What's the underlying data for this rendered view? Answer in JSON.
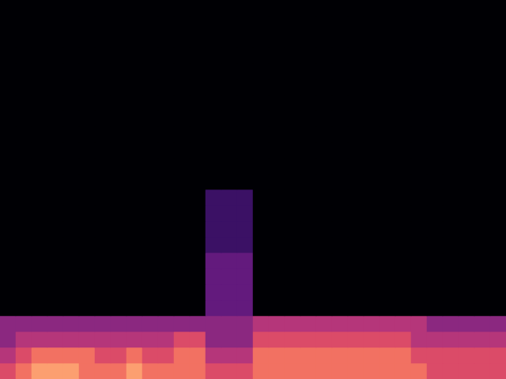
{
  "chart_data": {
    "type": "heatmap",
    "tick_labels": false,
    "grid": false,
    "zlim": [
      0,
      10
    ],
    "cells": [
      [
        6,
        7,
        8,
        8,
        8,
        7,
        7,
        7,
        8,
        7,
        7,
        7,
        7,
        6,
        6,
        6,
        7,
        7,
        7,
        7,
        7,
        7,
        7,
        7,
        7,
        7,
        7,
        6,
        6,
        6,
        6,
        6
      ],
      [
        5,
        6,
        7,
        7,
        7,
        7,
        6,
        6,
        7,
        6,
        6,
        7,
        7,
        5,
        5,
        5,
        7,
        7,
        7,
        7,
        7,
        7,
        7,
        7,
        7,
        7,
        6,
        6,
        6,
        6,
        6,
        6
      ],
      [
        4,
        5,
        5,
        5,
        5,
        5,
        5,
        5,
        5,
        5,
        5,
        6,
        6,
        4,
        4,
        4,
        6,
        6,
        6,
        6,
        6,
        6,
        6,
        6,
        6,
        6,
        5,
        5,
        5,
        5,
        5,
        5
      ],
      [
        4,
        4,
        4,
        4,
        4,
        4,
        4,
        4,
        4,
        4,
        4,
        4,
        4,
        4,
        4,
        4,
        5,
        5,
        5,
        5,
        5,
        5,
        5,
        5,
        5,
        5,
        5,
        4,
        4,
        4,
        4,
        4
      ],
      [
        0,
        0,
        0,
        0,
        0,
        0,
        0,
        0,
        0,
        0,
        0,
        0,
        0,
        3,
        3,
        3,
        0,
        0,
        0,
        0,
        0,
        0,
        0,
        0,
        0,
        0,
        0,
        0,
        0,
        0,
        0,
        0
      ],
      [
        0,
        0,
        0,
        0,
        0,
        0,
        0,
        0,
        0,
        0,
        0,
        0,
        0,
        3,
        3,
        3,
        0,
        0,
        0,
        0,
        0,
        0,
        0,
        0,
        0,
        0,
        0,
        0,
        0,
        0,
        0,
        0
      ],
      [
        0,
        0,
        0,
        0,
        0,
        0,
        0,
        0,
        0,
        0,
        0,
        0,
        0,
        3,
        3,
        3,
        0,
        0,
        0,
        0,
        0,
        0,
        0,
        0,
        0,
        0,
        0,
        0,
        0,
        0,
        0,
        0
      ],
      [
        0,
        0,
        0,
        0,
        0,
        0,
        0,
        0,
        0,
        0,
        0,
        0,
        0,
        3,
        3,
        3,
        0,
        0,
        0,
        0,
        0,
        0,
        0,
        0,
        0,
        0,
        0,
        0,
        0,
        0,
        0,
        0
      ],
      [
        0,
        0,
        0,
        0,
        0,
        0,
        0,
        0,
        0,
        0,
        0,
        0,
        0,
        2,
        2,
        2,
        0,
        0,
        0,
        0,
        0,
        0,
        0,
        0,
        0,
        0,
        0,
        0,
        0,
        0,
        0,
        0
      ],
      [
        0,
        0,
        0,
        0,
        0,
        0,
        0,
        0,
        0,
        0,
        0,
        0,
        0,
        2,
        2,
        2,
        0,
        0,
        0,
        0,
        0,
        0,
        0,
        0,
        0,
        0,
        0,
        0,
        0,
        0,
        0,
        0
      ],
      [
        0,
        0,
        0,
        0,
        0,
        0,
        0,
        0,
        0,
        0,
        0,
        0,
        0,
        2,
        2,
        2,
        0,
        0,
        0,
        0,
        0,
        0,
        0,
        0,
        0,
        0,
        0,
        0,
        0,
        0,
        0,
        0
      ],
      [
        0,
        0,
        0,
        0,
        0,
        0,
        0,
        0,
        0,
        0,
        0,
        0,
        0,
        2,
        2,
        2,
        0,
        0,
        0,
        0,
        0,
        0,
        0,
        0,
        0,
        0,
        0,
        0,
        0,
        0,
        0,
        0
      ],
      [
        0,
        0,
        0,
        0,
        0,
        0,
        0,
        0,
        0,
        0,
        0,
        0,
        0,
        0,
        0,
        0,
        0,
        0,
        0,
        0,
        0,
        0,
        0,
        0,
        0,
        0,
        0,
        0,
        0,
        0,
        0,
        0
      ],
      [
        0,
        0,
        0,
        0,
        0,
        0,
        0,
        0,
        0,
        0,
        0,
        0,
        0,
        0,
        0,
        0,
        0,
        0,
        0,
        0,
        0,
        0,
        0,
        0,
        0,
        0,
        0,
        0,
        0,
        0,
        0,
        0
      ],
      [
        0,
        0,
        0,
        0,
        0,
        0,
        0,
        0,
        0,
        0,
        0,
        0,
        0,
        0,
        0,
        0,
        0,
        0,
        0,
        0,
        0,
        0,
        0,
        0,
        0,
        0,
        0,
        0,
        0,
        0,
        0,
        0
      ],
      [
        0,
        0,
        0,
        0,
        0,
        0,
        0,
        0,
        0,
        0,
        0,
        0,
        0,
        0,
        0,
        0,
        0,
        0,
        0,
        0,
        0,
        0,
        0,
        0,
        0,
        0,
        0,
        0,
        0,
        0,
        0,
        0
      ],
      [
        0,
        0,
        0,
        0,
        0,
        0,
        0,
        0,
        0,
        0,
        0,
        0,
        0,
        0,
        0,
        0,
        0,
        0,
        0,
        0,
        0,
        0,
        0,
        0,
        0,
        0,
        0,
        0,
        0,
        0,
        0,
        0
      ],
      [
        0,
        0,
        0,
        0,
        0,
        0,
        0,
        0,
        0,
        0,
        0,
        0,
        0,
        0,
        0,
        0,
        0,
        0,
        0,
        0,
        0,
        0,
        0,
        0,
        0,
        0,
        0,
        0,
        0,
        0,
        0,
        0
      ],
      [
        0,
        0,
        0,
        0,
        0,
        0,
        0,
        0,
        0,
        0,
        0,
        0,
        0,
        0,
        0,
        0,
        0,
        0,
        0,
        0,
        0,
        0,
        0,
        0,
        0,
        0,
        0,
        0,
        0,
        0,
        0,
        0
      ],
      [
        0,
        0,
        0,
        0,
        0,
        0,
        0,
        0,
        0,
        0,
        0,
        0,
        0,
        0,
        0,
        0,
        0,
        0,
        0,
        0,
        0,
        0,
        0,
        0,
        0,
        0,
        0,
        0,
        0,
        0,
        0,
        0
      ],
      [
        0,
        0,
        0,
        0,
        0,
        0,
        0,
        0,
        0,
        0,
        0,
        0,
        0,
        0,
        0,
        0,
        0,
        0,
        0,
        0,
        0,
        0,
        0,
        0,
        0,
        0,
        0,
        0,
        0,
        0,
        0,
        0
      ],
      [
        0,
        0,
        0,
        0,
        0,
        0,
        0,
        0,
        0,
        0,
        0,
        0,
        0,
        0,
        0,
        0,
        0,
        0,
        0,
        0,
        0,
        0,
        0,
        0,
        0,
        0,
        0,
        0,
        0,
        0,
        0,
        0
      ],
      [
        0,
        0,
        0,
        0,
        0,
        0,
        0,
        0,
        0,
        0,
        0,
        0,
        0,
        0,
        0,
        0,
        0,
        0,
        0,
        0,
        0,
        0,
        0,
        0,
        0,
        0,
        0,
        0,
        0,
        0,
        0,
        0
      ],
      [
        0,
        0,
        0,
        0,
        0,
        0,
        0,
        0,
        0,
        0,
        0,
        0,
        0,
        0,
        0,
        0,
        0,
        0,
        0,
        0,
        0,
        0,
        0,
        0,
        0,
        0,
        0,
        0,
        0,
        0,
        0,
        0
      ]
    ]
  }
}
